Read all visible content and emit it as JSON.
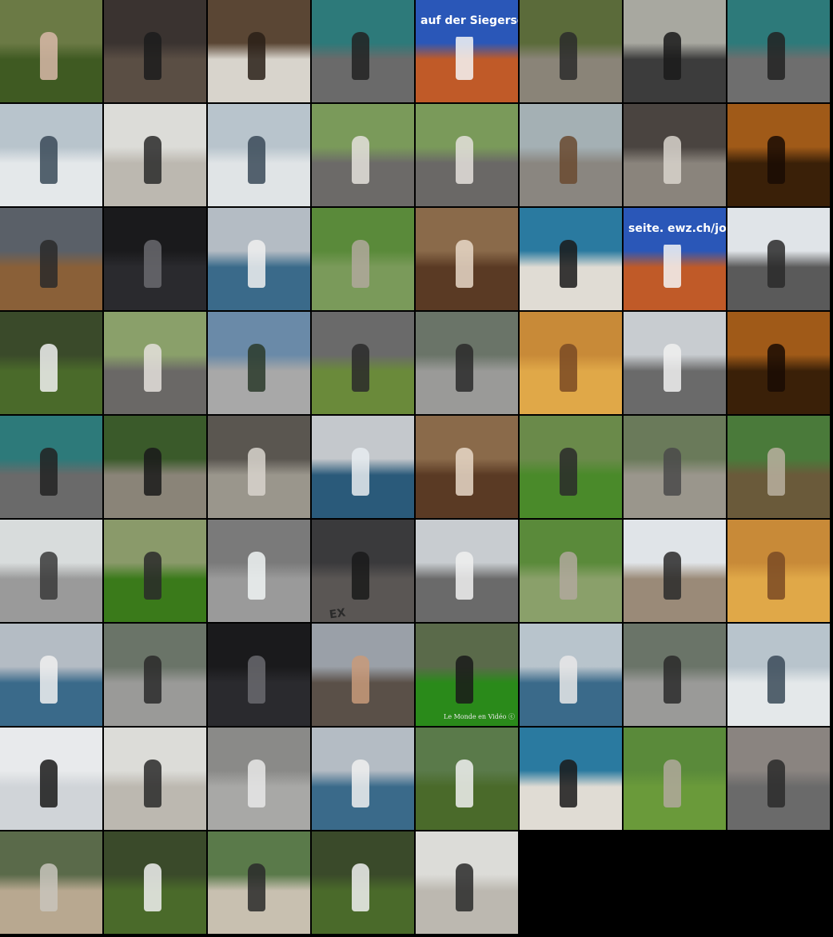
{
  "grid": {
    "columns": 8,
    "rows": 9,
    "background": "#000000"
  },
  "tiles": [
    {
      "name": "thumb-girl-in-grass",
      "sky": "#6b7a45",
      "ground": "#3f5a22",
      "accent": "#d8b8a8"
    },
    {
      "name": "thumb-shop-interior-people",
      "sky": "#3a3330",
      "ground": "#5a4e44",
      "accent": "#1c1c1c"
    },
    {
      "name": "thumb-shop-shelves-hand",
      "sky": "#5a4634",
      "ground": "#d8d4cc",
      "accent": "#2a2018"
    },
    {
      "name": "thumb-inline-skater-hockey",
      "sky": "#2d7a7a",
      "ground": "#6a6a6a",
      "accent": "#222222"
    },
    {
      "name": "thumb-tennis-player-banner",
      "sky": "#2a57b8",
      "ground": "#c05a28",
      "accent": "#f4f4f4",
      "caption": "auf der Siegerseite. ewz.ch/jobs"
    },
    {
      "name": "thumb-cyclist-on-path",
      "sky": "#5b6b3a",
      "ground": "#8a8478",
      "accent": "#2c2c2c"
    },
    {
      "name": "thumb-vintage-car-crowd",
      "sky": "#a8a8a0",
      "ground": "#3c3c3c",
      "accent": "#1a1a1a"
    },
    {
      "name": "thumb-inline-skater-rink",
      "sky": "#2d7a7a",
      "ground": "#6e6e6e",
      "accent": "#222222"
    },
    {
      "name": "thumb-surfer-wave",
      "sky": "#b8c4cc",
      "ground": "#e4e8ea",
      "accent": "#3a4a58"
    },
    {
      "name": "thumb-skate-bowl-shore",
      "sky": "#dcdcd8",
      "ground": "#bcb8b0",
      "accent": "#2a2a2a"
    },
    {
      "name": "thumb-surfer-spray",
      "sky": "#b8c4cc",
      "ground": "#e0e4e6",
      "accent": "#3a4a58"
    },
    {
      "name": "thumb-girl-on-swing",
      "sky": "#7a9a5a",
      "ground": "#6c6a68",
      "accent": "#e4e0dc"
    },
    {
      "name": "thumb-girl-swinging",
      "sky": "#7a9a5a",
      "ground": "#6a6866",
      "accent": "#e4e0dc"
    },
    {
      "name": "thumb-playground-wooden-train",
      "sky": "#a4b0b4",
      "ground": "#8a8680",
      "accent": "#6a4a30"
    },
    {
      "name": "thumb-go-kart-rider",
      "sky": "#4a4440",
      "ground": "#8a847c",
      "accent": "#d8d4cc"
    },
    {
      "name": "thumb-silhouette-amber-light",
      "sky": "#a05a18",
      "ground": "#3a2008",
      "accent": "#1a0c04"
    },
    {
      "name": "thumb-motocross-closeup",
      "sky": "#5a6068",
      "ground": "#8a6038",
      "accent": "#2a2a2a"
    },
    {
      "name": "thumb-dark-hall-car",
      "sky": "#1a1a1c",
      "ground": "#2a2a2e",
      "accent": "#6a6a6e"
    },
    {
      "name": "thumb-windsurfer-sea",
      "sky": "#b4bcc4",
      "ground": "#3a6a8a",
      "accent": "#f0f0f0"
    },
    {
      "name": "thumb-park-bench-person",
      "sky": "#5a8a3a",
      "ground": "#7a9a5a",
      "accent": "#b0a89c"
    },
    {
      "name": "thumb-selfie-funfair-ride",
      "sky": "#8a6a4a",
      "ground": "#5a3a24",
      "accent": "#e8d8c8"
    },
    {
      "name": "thumb-kitesurfer-beach",
      "sky": "#2a7aa0",
      "ground": "#e0dcd4",
      "accent": "#1a1a1a"
    },
    {
      "name": "thumb-tennis-banner-ewz",
      "sky": "#2a57b8",
      "ground": "#c05a28",
      "accent": "#f4f4f4",
      "caption": "seite. ewz.ch/jobs"
    },
    {
      "name": "thumb-skater-boardwalk",
      "sky": "#e0e4e8",
      "ground": "#5a5a5a",
      "accent": "#2a2a2a"
    },
    {
      "name": "thumb-football-fence",
      "sky": "#3a4a2a",
      "ground": "#4a6a2a",
      "accent": "#f0f0f0"
    },
    {
      "name": "thumb-girl-swing-chain",
      "sky": "#8aa06a",
      "ground": "#6a6866",
      "accent": "#e4e0dc"
    },
    {
      "name": "thumb-fisheye-terrace-people",
      "sky": "#6a8aa8",
      "ground": "#a8a8a8",
      "accent": "#2a3a2a"
    },
    {
      "name": "thumb-motocross-jump",
      "sky": "#6a6a6a",
      "ground": "#6a8a3a",
      "accent": "#2a2a2a"
    },
    {
      "name": "thumb-stroller-storefront",
      "sky": "#6a7468",
      "ground": "#9a9a98",
      "accent": "#2a2a2a"
    },
    {
      "name": "thumb-hands-orange-drink",
      "sky": "#c88a38",
      "ground": "#e0a848",
      "accent": "#7a4a24"
    },
    {
      "name": "thumb-street-crossing-kids",
      "sky": "#c8ccd0",
      "ground": "#6a6a6a",
      "accent": "#f0f0f0"
    },
    {
      "name": "thumb-silhouette-amber-room",
      "sky": "#a05a18",
      "ground": "#3a2008",
      "accent": "#1a0c04"
    },
    {
      "name": "thumb-inline-skater-graffiti",
      "sky": "#2d7a7a",
      "ground": "#6a6a6a",
      "accent": "#222222"
    },
    {
      "name": "thumb-hiker-forest-trail",
      "sky": "#3a5a2a",
      "ground": "#8a8478",
      "accent": "#1a1a1a"
    },
    {
      "name": "thumb-water-ripples-figure",
      "sky": "#5a5650",
      "ground": "#9a968c",
      "accent": "#d8d4cc"
    },
    {
      "name": "thumb-sea-horizon-haze",
      "sky": "#c4c8cc",
      "ground": "#2a5a7a",
      "accent": "#e8ecf0"
    },
    {
      "name": "thumb-selfie-ride-mask",
      "sky": "#8a6a4a",
      "ground": "#5a3a24",
      "accent": "#e8d8c8"
    },
    {
      "name": "thumb-duck-on-grass",
      "sky": "#6a8a4a",
      "ground": "#4a8a2a",
      "accent": "#2a2a2a"
    },
    {
      "name": "thumb-model-railway-tinyplanet",
      "sky": "#6a7a5a",
      "ground": "#9a968c",
      "accent": "#4a4a4a"
    },
    {
      "name": "thumb-lemur-in-tree",
      "sky": "#4a7a3a",
      "ground": "#6a5a3a",
      "accent": "#b8b0a0"
    },
    {
      "name": "thumb-rally-car-stands",
      "sky": "#d8dcdc",
      "ground": "#9a9a9a",
      "accent": "#3a3a3a"
    },
    {
      "name": "thumb-grass-slope-bird",
      "sky": "#8a9a6a",
      "ground": "#3a7a1a",
      "accent": "#2a2a2a"
    },
    {
      "name": "thumb-city-bus-aerial",
      "sky": "#7a7a7a",
      "ground": "#9a9a9a",
      "accent": "#f0f4f4"
    },
    {
      "name": "thumb-store-aisle-people",
      "sky": "#3a3a3c",
      "ground": "#5a5654",
      "accent": "#1a1a1a",
      "floor_text": "EX"
    },
    {
      "name": "thumb-crosswalk-children",
      "sky": "#c8ccd0",
      "ground": "#6a6a6a",
      "accent": "#f0f0f0"
    },
    {
      "name": "thumb-park-bench-walker",
      "sky": "#5a8a3a",
      "ground": "#8aa06a",
      "accent": "#b0a89c"
    },
    {
      "name": "thumb-promenade-skater",
      "sky": "#e0e4e8",
      "ground": "#9a8a78",
      "accent": "#2a2a2a"
    },
    {
      "name": "thumb-hands-orange-glow",
      "sky": "#c88a38",
      "ground": "#e0a848",
      "accent": "#7a4a24"
    },
    {
      "name": "thumb-windsurfer-closeup",
      "sky": "#b4bcc4",
      "ground": "#3a6a8a",
      "accent": "#f0f0f0"
    },
    {
      "name": "thumb-woman-stroller-store",
      "sky": "#6a7468",
      "ground": "#9a9a98",
      "accent": "#2a2a2a"
    },
    {
      "name": "thumb-dark-tunnel-hall",
      "sky": "#1a1a1c",
      "ground": "#2a2a2e",
      "accent": "#6a6a6e"
    },
    {
      "name": "thumb-selfie-man-city",
      "sky": "#9aa0a8",
      "ground": "#5a5048",
      "accent": "#c89a7a"
    },
    {
      "name": "thumb-dog-and-geese-lawn",
      "sky": "#5a6a4a",
      "ground": "#2a8a1a",
      "accent": "#1a1a1a",
      "watermark": "Le Monde en Vidéo ⓒ"
    },
    {
      "name": "thumb-boat-on-lake",
      "sky": "#b8c4cc",
      "ground": "#3a6a8a",
      "accent": "#e8e8e8"
    },
    {
      "name": "thumb-stroller-sidewalk",
      "sky": "#6a7468",
      "ground": "#9a9a98",
      "accent": "#2a2a2a"
    },
    {
      "name": "thumb-surfer-falling",
      "sky": "#b8c4cc",
      "ground": "#e4e8ea",
      "accent": "#3a4a58"
    },
    {
      "name": "thumb-snowboarder-black",
      "sky": "#e8eaec",
      "ground": "#d0d4d8",
      "accent": "#1a1a1a"
    },
    {
      "name": "thumb-skate-bowl-empty",
      "sky": "#dcdcd8",
      "ground": "#bcb8b0",
      "accent": "#2a2a2a"
    },
    {
      "name": "thumb-rally-car-closeup",
      "sky": "#8a8a88",
      "ground": "#a8a8a6",
      "accent": "#e8e8e8"
    },
    {
      "name": "thumb-windsurfer-bay",
      "sky": "#b4bcc4",
      "ground": "#3a6a8a",
      "accent": "#f0f0f0"
    },
    {
      "name": "thumb-poles-park-closeup",
      "sky": "#5a7a4a",
      "ground": "#4a6a2a",
      "accent": "#f0f0f0"
    },
    {
      "name": "thumb-kitesurfer-shore",
      "sky": "#2a7aa0",
      "ground": "#e0dcd4",
      "accent": "#1a1a1a"
    },
    {
      "name": "thumb-park-walker-trees",
      "sky": "#5a8a3a",
      "ground": "#6a9a3a",
      "accent": "#b0a89c"
    },
    {
      "name": "thumb-scooter-rider-street",
      "sky": "#8a8480",
      "ground": "#6a6a6a",
      "accent": "#2a2a2a"
    },
    {
      "name": "thumb-elephant-zoo",
      "sky": "#5a6a4a",
      "ground": "#b8a890",
      "accent": "#c8c4bc"
    },
    {
      "name": "thumb-football-in-net",
      "sky": "#3a4a2a",
      "ground": "#4a6a2a",
      "accent": "#f0f0f0"
    },
    {
      "name": "thumb-bmx-dirt-jump",
      "sky": "#5a7a4a",
      "ground": "#c8c0b0",
      "accent": "#2a2a2a"
    },
    {
      "name": "thumb-football-fence-grass",
      "sky": "#3a4a2a",
      "ground": "#4a6a2a",
      "accent": "#f0f0f0"
    },
    {
      "name": "thumb-skate-bowl-rider",
      "sky": "#dcdcd8",
      "ground": "#bcb8b0",
      "accent": "#2a2a2a"
    }
  ]
}
